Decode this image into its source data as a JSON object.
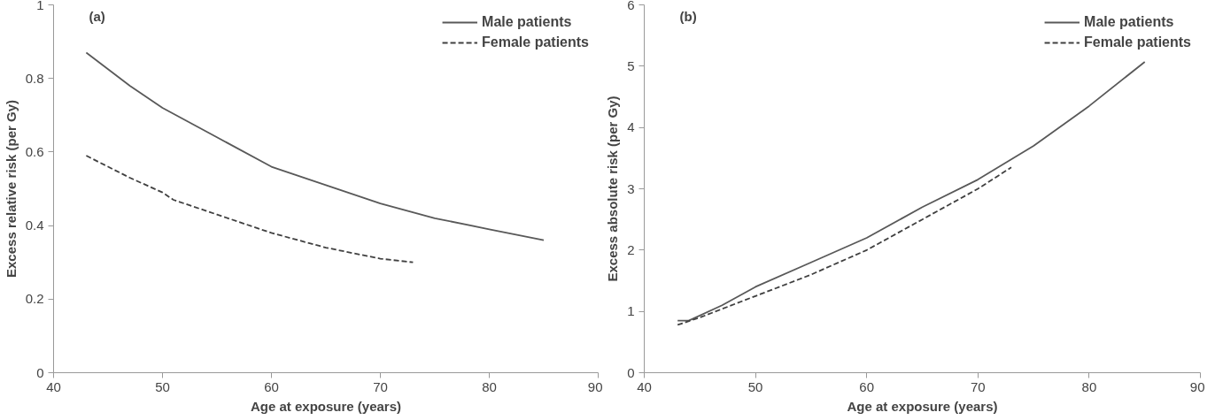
{
  "chart_data": [
    {
      "type": "line",
      "xlabel": "Age at exposure (years)",
      "ylabel": "Excess relative risk (per Gy)",
      "annotations": [
        "(a)"
      ],
      "xlim": [
        40,
        90
      ],
      "xticks": [
        40,
        50,
        60,
        70,
        80,
        90
      ],
      "ylim": [
        0,
        1
      ],
      "yticks": [
        0,
        0.2,
        0.4,
        0.6,
        0.8,
        1
      ],
      "legend": "top right",
      "grid": false,
      "series": [
        {
          "name": "Male patients",
          "color": "#595959",
          "line_style": "solid",
          "x": [
            43,
            47,
            50,
            55,
            60,
            65,
            70,
            75,
            80,
            85
          ],
          "values": [
            0.87,
            0.78,
            0.72,
            0.64,
            0.56,
            0.51,
            0.46,
            0.42,
            0.39,
            0.36
          ]
        },
        {
          "name": "Female patients",
          "color": "#404040",
          "line_style": "dashed",
          "x": [
            43,
            47,
            50,
            51,
            55,
            60,
            65,
            70,
            73
          ],
          "values": [
            0.59,
            0.53,
            0.49,
            0.47,
            0.43,
            0.38,
            0.34,
            0.31,
            0.3
          ]
        }
      ]
    },
    {
      "type": "line",
      "xlabel": "Age at exposure (years)",
      "ylabel": "Excess absolute risk (per Gy)",
      "annotations": [
        "(b)"
      ],
      "xlim": [
        40,
        90
      ],
      "xticks": [
        40,
        50,
        60,
        70,
        80,
        90
      ],
      "ylim": [
        0,
        6
      ],
      "yticks": [
        0,
        1,
        2,
        3,
        4,
        5,
        6
      ],
      "legend": "top right",
      "grid": false,
      "series": [
        {
          "name": "Male patients",
          "color": "#595959",
          "line_style": "solid",
          "x": [
            43,
            44,
            47,
            50,
            55,
            60,
            65,
            70,
            75,
            80,
            85
          ],
          "values": [
            0.85,
            0.85,
            1.1,
            1.4,
            1.8,
            2.2,
            2.7,
            3.15,
            3.7,
            4.35,
            5.07
          ]
        },
        {
          "name": "Female patients",
          "color": "#404040",
          "line_style": "dashed",
          "x": [
            43,
            45,
            50,
            55,
            60,
            65,
            70,
            73
          ],
          "values": [
            0.78,
            0.9,
            1.25,
            1.6,
            2.0,
            2.5,
            3.0,
            3.35
          ]
        }
      ]
    }
  ]
}
